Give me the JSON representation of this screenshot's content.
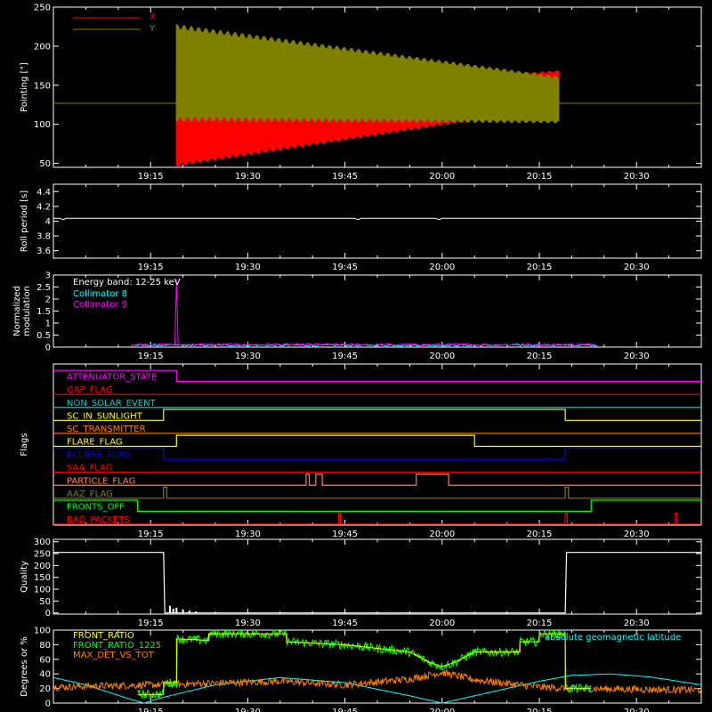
{
  "chart_data": [
    {
      "id": "pointing",
      "type": "line",
      "ylabel": "Pointing [\"]",
      "ylim": [
        45,
        250
      ],
      "yticks": [
        50,
        100,
        150,
        200,
        250
      ],
      "legend": [
        {
          "name": "X",
          "color": "#ff0000"
        },
        {
          "name": "Y",
          "color": "#808000"
        }
      ],
      "series": [
        {
          "name": "X",
          "color": "#ff0000",
          "baseline": 127,
          "start": "19:19",
          "end": "20:18",
          "upper_start": 130,
          "upper_end": 168,
          "lower_start": 48,
          "lower_end": 123
        },
        {
          "name": "Y",
          "color": "#808000",
          "baseline": 127,
          "start": "19:19",
          "end": "20:18",
          "upper_start": 225,
          "upper_end": 160,
          "lower_start": 107,
          "lower_end": 103
        }
      ]
    },
    {
      "id": "roll",
      "type": "line",
      "ylabel": "Roll period [s]",
      "ylim": [
        3.5,
        4.5
      ],
      "yticks": [
        3.6,
        3.8,
        4.0,
        4.2,
        4.4
      ],
      "series": [
        {
          "name": "roll",
          "color": "#ffffff",
          "value": 4.04
        }
      ]
    },
    {
      "id": "modulation",
      "type": "line",
      "ylabel": [
        "Normalized",
        "modulation"
      ],
      "ylim": [
        0,
        3.0
      ],
      "yticks": [
        0.0,
        0.5,
        1.0,
        1.5,
        2.0,
        2.5,
        3.0
      ],
      "annotation": "Energy band: 12-25 keV",
      "legend": [
        {
          "name": "Collimator 8",
          "color": "#00ffff"
        },
        {
          "name": "Collimator 9",
          "color": "#ff00ff"
        }
      ],
      "series": [
        {
          "name": "Collimator 8",
          "color": "#00ffff",
          "start": "19:12",
          "end": "20:24",
          "level": 0.08
        },
        {
          "name": "Collimator 9",
          "color": "#ff00ff",
          "start": "19:12",
          "end": "20:24",
          "level": 0.1,
          "spike_time": "19:19",
          "spike_value": 2.8
        }
      ]
    },
    {
      "id": "flags",
      "type": "line",
      "ylabel": "Flags",
      "flags": [
        {
          "name": "ATTENUATOR_STATE",
          "color": "#ff00ff",
          "segments": [
            [
              "19:00",
              "19:19",
              1
            ],
            [
              "19:19",
              "20:40",
              0
            ]
          ]
        },
        {
          "name": "GAP_FLAG",
          "color": "#ff0000",
          "segments": [
            [
              "19:00",
              "20:40",
              0
            ]
          ]
        },
        {
          "name": "NON_SOLAR_EVENT",
          "color": "#00cccc",
          "segments": [
            [
              "19:00",
              "20:40",
              0
            ]
          ]
        },
        {
          "name": "SC_IN_SUNLIGHT",
          "color": "#ffff00",
          "segments": [
            [
              "19:00",
              "19:17",
              0
            ],
            [
              "19:17",
              "20:19",
              1
            ],
            [
              "20:19",
              "20:40",
              0
            ]
          ]
        },
        {
          "name": "SC_TRANSMITTER",
          "color": "#ff8000",
          "segments": [
            [
              "19:00",
              "20:40",
              0
            ]
          ]
        },
        {
          "name": "FLARE_FLAG",
          "color": "#ffff00",
          "segments": [
            [
              "19:00",
              "19:19",
              0
            ],
            [
              "19:19",
              "20:05",
              1
            ],
            [
              "20:05",
              "20:40",
              0
            ]
          ]
        },
        {
          "name": "ECLIPSE_FLAG",
          "color": "#0000ff",
          "segments": [
            [
              "19:00",
              "19:17",
              1
            ],
            [
              "19:17",
              "20:19",
              0
            ],
            [
              "20:19",
              "20:40",
              1
            ]
          ]
        },
        {
          "name": "SAA_FLAG",
          "color": "#ff0000",
          "segments": [
            [
              "19:00",
              "20:40",
              0
            ]
          ]
        },
        {
          "name": "PARTICLE_FLAG",
          "color": "#ff8040",
          "segments": [
            [
              "19:00",
              "19:39",
              0
            ],
            [
              "19:39",
              "19:39.5",
              1
            ],
            [
              "19:39.5",
              "19:40.5",
              0
            ],
            [
              "19:40.5",
              "19:41.5",
              1
            ],
            [
              "19:41.5",
              "19:56",
              0
            ],
            [
              "19:56",
              "20:01",
              1
            ],
            [
              "20:01",
              "20:40",
              0
            ]
          ]
        },
        {
          "name": "AAZ_FLAG",
          "color": "#808000",
          "segments": [
            [
              "19:00",
              "19:17",
              0
            ],
            [
              "19:17",
              "19:17.5",
              1
            ],
            [
              "19:17.5",
              "20:19",
              0
            ],
            [
              "20:19",
              "20:19.5",
              1
            ],
            [
              "20:19.5",
              "20:40",
              0
            ]
          ]
        },
        {
          "name": "FRONTS_OFF",
          "color": "#00ff00",
          "segments": [
            [
              "19:00",
              "19:13",
              1
            ],
            [
              "19:13",
              "20:23",
              0
            ],
            [
              "20:23",
              "20:40",
              1
            ]
          ]
        },
        {
          "name": "BAD_PACKETS",
          "color": "#ff0000",
          "segments": [
            [
              "19:00",
              "19:44",
              0
            ],
            [
              "19:44",
              "19:44.3",
              1
            ],
            [
              "19:44.3",
              "20:19",
              0
            ],
            [
              "20:19",
              "20:19.3",
              1
            ],
            [
              "20:19.3",
              "20:36",
              0
            ],
            [
              "20:36",
              "20:36.3",
              1
            ],
            [
              "20:36.3",
              "20:40",
              0
            ]
          ]
        }
      ]
    },
    {
      "id": "quality",
      "type": "line",
      "ylabel": "Quality",
      "ylim": [
        -5,
        310
      ],
      "yticks": [
        0,
        50,
        100,
        150,
        200,
        250,
        300
      ],
      "series": [
        {
          "name": "quality",
          "color": "#ffffff",
          "points": [
            [
              "19:00",
              255
            ],
            [
              "19:17",
              255
            ],
            [
              "19:17.2",
              0
            ],
            [
              "20:19",
              0
            ],
            [
              "20:19.2",
              255
            ],
            [
              "20:40",
              255
            ]
          ],
          "spikes": [
            [
              "19:18",
              30
            ],
            [
              "19:18.5",
              18
            ],
            [
              "19:19",
              22
            ],
            [
              "19:20",
              15
            ],
            [
              "19:21",
              10
            ],
            [
              "19:22",
              6
            ]
          ]
        }
      ]
    },
    {
      "id": "ratio",
      "type": "line",
      "ylabel": "Degrees or %",
      "ylim": [
        0,
        100
      ],
      "yticks": [
        0,
        20,
        40,
        60,
        80,
        100
      ],
      "legend": [
        {
          "name": "FRONT_RATIO",
          "color": "#ffff00"
        },
        {
          "name": "FRONT_RATIO_1225",
          "color": "#00ff00"
        },
        {
          "name": "MAX_DET_VS_TOT",
          "color": "#ff8000"
        }
      ],
      "annotation": "absolute geomagnetic latitude",
      "annotation_color": "#00ffff",
      "series": [
        {
          "name": "FRONT_RATIO",
          "color": "#ffff00",
          "points": [
            [
              "19:13",
              12
            ],
            [
              "19:17",
              12
            ],
            [
              "19:17",
              28
            ],
            [
              "19:19",
              28
            ],
            [
              "19:19",
              88
            ],
            [
              "19:24",
              86
            ],
            [
              "19:24",
              95
            ],
            [
              "19:36",
              95
            ],
            [
              "19:36",
              84
            ],
            [
              "19:45",
              80
            ],
            [
              "19:55",
              70
            ],
            [
              "19:58",
              56
            ],
            [
              "20:00",
              50
            ],
            [
              "20:02",
              56
            ],
            [
              "20:05",
              70
            ],
            [
              "20:12",
              70
            ],
            [
              "20:12",
              84
            ],
            [
              "20:15",
              84
            ],
            [
              "20:15",
              95
            ],
            [
              "20:19",
              95
            ],
            [
              "20:19",
              20
            ],
            [
              "20:23",
              20
            ]
          ]
        },
        {
          "name": "FRONT_RATIO_1225",
          "color": "#00ff00",
          "base": "FRONT_RATIO",
          "noise": 6,
          "start": "19:13",
          "end": "20:23"
        },
        {
          "name": "MAX_DET_VS_TOT",
          "color": "#ff8000",
          "noise": 5,
          "start": "19:00",
          "end": "20:40",
          "points": [
            [
              "19:00",
              22
            ],
            [
              "19:20",
              26
            ],
            [
              "19:35",
              30
            ],
            [
              "19:45",
              25
            ],
            [
              "19:55",
              33
            ],
            [
              "20:00",
              42
            ],
            [
              "20:05",
              32
            ],
            [
              "20:15",
              22
            ],
            [
              "20:20",
              20
            ],
            [
              "20:40",
              18
            ]
          ]
        },
        {
          "name": "absolute geomagnetic latitude",
          "color": "#00ffff",
          "points": [
            [
              "19:00",
              35
            ],
            [
              "19:05",
              25
            ],
            [
              "19:12",
              5
            ],
            [
              "19:14",
              0
            ],
            [
              "19:17",
              8
            ],
            [
              "19:25",
              25
            ],
            [
              "19:35",
              35
            ],
            [
              "19:45",
              28
            ],
            [
              "19:55",
              10
            ],
            [
              "20:00",
              0
            ],
            [
              "20:05",
              10
            ],
            [
              "20:15",
              30
            ],
            [
              "20:20",
              38
            ],
            [
              "20:26",
              40
            ],
            [
              "20:32",
              36
            ],
            [
              "20:40",
              25
            ]
          ]
        }
      ]
    }
  ],
  "x_axis": {
    "start": "19:00",
    "end": "20:40",
    "ticks": [
      "19:15",
      "19:30",
      "19:45",
      "20:00",
      "20:15",
      "20:30"
    ]
  }
}
